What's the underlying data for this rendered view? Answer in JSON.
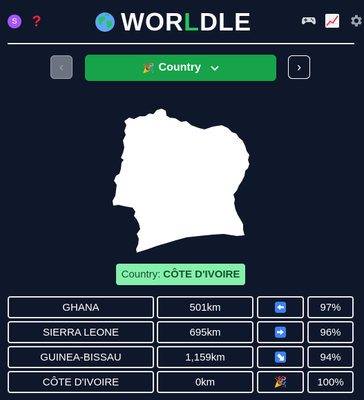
{
  "header": {
    "avatar_letter": "S",
    "help_icon": "?",
    "title_left": "WOR",
    "title_mid": "L",
    "title_right": "DLE",
    "icons": [
      "globe-icon",
      "controller-icon",
      "chart-icon",
      "gear-icon"
    ]
  },
  "nav": {
    "prev_label": "‹",
    "next_label": "›",
    "mode_emoji": "🎉",
    "mode_label": "Country",
    "chevron": "⌄"
  },
  "answer": {
    "prefix": "Country:",
    "value": "CÔTE D'IVOIRE"
  },
  "guesses": [
    {
      "name": "GHANA",
      "distance": "501km",
      "direction": "left",
      "percent": "97%"
    },
    {
      "name": "SIERRA LEONE",
      "distance": "695km",
      "direction": "right",
      "percent": "96%"
    },
    {
      "name": "GUINEA-BISSAU",
      "distance": "1,159km",
      "direction": "down-right",
      "percent": "94%"
    },
    {
      "name": "CÔTE D'IVOIRE",
      "distance": "0km",
      "direction": "party",
      "percent": "100%"
    }
  ],
  "colors": {
    "background": "#0f172a",
    "accent_green": "#16a34a",
    "answer_bg": "#86efac",
    "arrow_blue": "#3b82f6"
  }
}
